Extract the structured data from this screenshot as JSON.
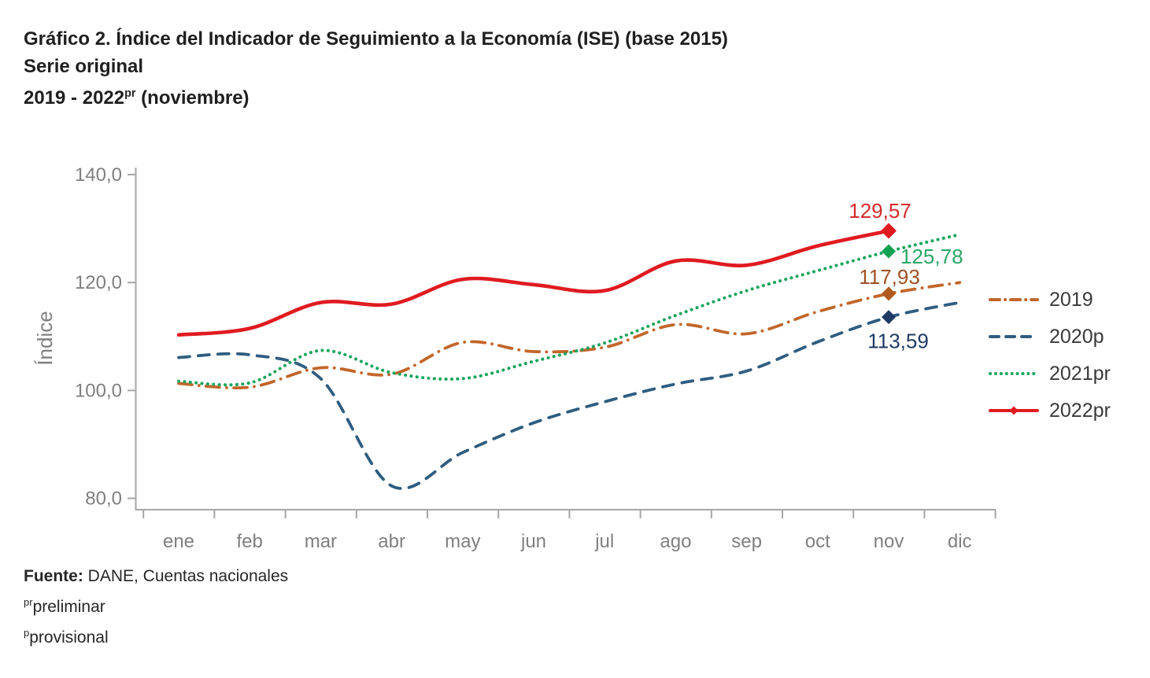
{
  "title": {
    "line1": "Gráfico 2. Índice del Indicador de Seguimiento a la Economía (ISE) (base 2015)",
    "line2": "Serie original",
    "period_prefix": "2019 - 2022",
    "period_sup": "pr",
    "period_suffix": " (noviembre)"
  },
  "chart_data": {
    "type": "line",
    "title": "Índice del Indicador de Seguimiento a la Economía (ISE) (base 2015), serie original, 2019 - 2022pr (noviembre)",
    "xlabel": "",
    "ylabel": "Índice",
    "x_categories": [
      "ene",
      "feb",
      "mar",
      "abr",
      "may",
      "jun",
      "jul",
      "ago",
      "sep",
      "oct",
      "nov",
      "dic"
    ],
    "ylim": [
      80,
      140
    ],
    "y_ticks": [
      {
        "value": 140,
        "label": "140,0"
      },
      {
        "value": 120,
        "label": "120,0"
      },
      {
        "value": 100,
        "label": "100,0"
      },
      {
        "value": 80,
        "label": "80,0"
      }
    ],
    "grid": false,
    "legend_position": "right",
    "marker_month": "nov",
    "axis_color": "#a6a6a6",
    "tick_text_color": "#7f7f7f",
    "series": [
      {
        "name": "2019",
        "style": "dashdot",
        "color": "#c2662a",
        "marker_color": "#b05a1e",
        "label_color": "#9d5126",
        "end_label": "117,93",
        "values": [
          101.3,
          100.6,
          104.2,
          103.0,
          108.9,
          107.2,
          108.0,
          112.2,
          110.5,
          114.6,
          117.93,
          120.0
        ]
      },
      {
        "name": "2020p",
        "style": "dashed",
        "color": "#2f5d80",
        "marker_color": "#1f3a63",
        "label_color": "#1f3a63",
        "end_label": "113,59",
        "values": [
          106.1,
          106.6,
          102.2,
          82.3,
          88.5,
          94.0,
          97.9,
          101.2,
          103.6,
          109.0,
          113.59,
          116.3
        ]
      },
      {
        "name": "2021pr",
        "style": "dotted",
        "color": "#17a45c",
        "marker_color": "#0fa050",
        "label_color": "#2aa765",
        "end_label": "125,78",
        "values": [
          101.7,
          101.4,
          107.4,
          103.3,
          102.2,
          105.4,
          108.8,
          113.9,
          118.5,
          122.2,
          125.78,
          128.9
        ]
      },
      {
        "name": "2022pr",
        "style": "solid",
        "color": "#e01b20",
        "marker_color": "#e01b20",
        "label_color": "#d42a2d",
        "end_label": "129,57",
        "values": [
          110.3,
          111.5,
          116.3,
          116.0,
          120.6,
          119.6,
          118.5,
          124.0,
          123.2,
          126.8,
          129.57
        ]
      }
    ]
  },
  "footer": {
    "source_label": "Fuente:",
    "source_text": "DANE, Cuentas nacionales",
    "note1_sup": "pr",
    "note1_text": "preliminar",
    "note2_sup": "p",
    "note2_text": "provisional"
  }
}
